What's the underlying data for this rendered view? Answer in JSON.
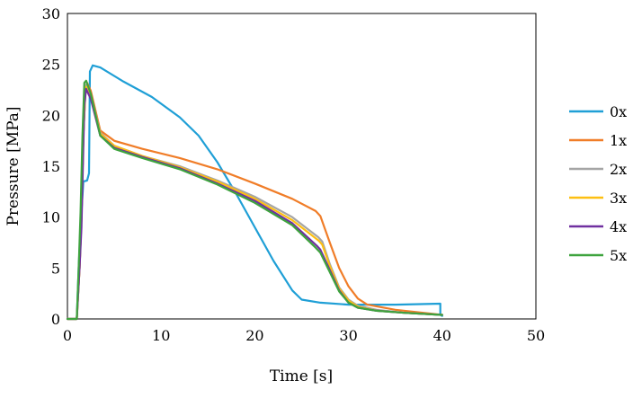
{
  "chart_data": {
    "type": "line",
    "title": "",
    "xlabel": "Time [s]",
    "ylabel": "Pressure [MPa]",
    "xlim": [
      0,
      50
    ],
    "ylim": [
      0,
      30
    ],
    "xticks": [
      0,
      10,
      20,
      30,
      40,
      50
    ],
    "yticks": [
      0,
      5,
      10,
      15,
      20,
      25,
      30
    ],
    "x_tick_labels": [
      "0",
      "10",
      "20",
      "30",
      "40",
      "50"
    ],
    "y_tick_labels": [
      "0",
      "5",
      "10",
      "15",
      "20",
      "25",
      "30"
    ],
    "grid": false,
    "legend_position": "right",
    "series": [
      {
        "name": "0x",
        "color": "#1f9fd6",
        "points": [
          [
            0,
            0
          ],
          [
            1.0,
            0
          ],
          [
            1.2,
            5
          ],
          [
            1.4,
            9
          ],
          [
            1.7,
            13.5
          ],
          [
            2.1,
            13.6
          ],
          [
            2.3,
            14.3
          ],
          [
            2.4,
            24.3
          ],
          [
            2.7,
            24.9
          ],
          [
            3.5,
            24.7
          ],
          [
            6,
            23.3
          ],
          [
            9,
            21.8
          ],
          [
            12,
            19.8
          ],
          [
            14,
            18.0
          ],
          [
            16,
            15.4
          ],
          [
            18,
            12.3
          ],
          [
            20,
            9.0
          ],
          [
            22,
            5.7
          ],
          [
            24,
            2.8
          ],
          [
            25,
            1.9
          ],
          [
            27,
            1.6
          ],
          [
            30,
            1.4
          ],
          [
            35,
            1.4
          ],
          [
            39.8,
            1.5
          ],
          [
            39.8,
            0.4
          ],
          [
            40,
            0.3
          ]
        ]
      },
      {
        "name": "1x",
        "color": "#f07d28",
        "points": [
          [
            0,
            0
          ],
          [
            1.0,
            0
          ],
          [
            1.3,
            5
          ],
          [
            1.5,
            10
          ],
          [
            1.7,
            18
          ],
          [
            1.9,
            22
          ],
          [
            2.1,
            23.2
          ],
          [
            2.5,
            22.4
          ],
          [
            3.5,
            18.5
          ],
          [
            5,
            17.5
          ],
          [
            8,
            16.7
          ],
          [
            12,
            15.8
          ],
          [
            16,
            14.7
          ],
          [
            20,
            13.3
          ],
          [
            24,
            11.8
          ],
          [
            26.5,
            10.6
          ],
          [
            27,
            10.1
          ],
          [
            28,
            7.5
          ],
          [
            29,
            5.0
          ],
          [
            30,
            3.2
          ],
          [
            31,
            2.0
          ],
          [
            32,
            1.4
          ],
          [
            35,
            0.9
          ],
          [
            38,
            0.6
          ],
          [
            40,
            0.4
          ]
        ]
      },
      {
        "name": "2x",
        "color": "#a5a5a5",
        "points": [
          [
            0,
            0
          ],
          [
            1.0,
            0
          ],
          [
            1.3,
            5
          ],
          [
            1.5,
            10
          ],
          [
            1.7,
            18
          ],
          [
            1.9,
            22
          ],
          [
            2.0,
            23.0
          ],
          [
            2.5,
            22.0
          ],
          [
            3.5,
            18.3
          ],
          [
            5,
            17.0
          ],
          [
            8,
            16.0
          ],
          [
            12,
            15.0
          ],
          [
            16,
            13.6
          ],
          [
            20,
            12.0
          ],
          [
            24,
            10.0
          ],
          [
            26.8,
            8.0
          ],
          [
            27.2,
            7.6
          ],
          [
            28,
            5.4
          ],
          [
            29,
            3.1
          ],
          [
            30,
            1.9
          ],
          [
            31,
            1.3
          ],
          [
            33,
            0.9
          ],
          [
            36,
            0.6
          ],
          [
            40,
            0.4
          ]
        ]
      },
      {
        "name": "3x",
        "color": "#fdbf12",
        "points": [
          [
            0,
            0
          ],
          [
            1.0,
            0
          ],
          [
            1.3,
            5
          ],
          [
            1.5,
            9.8
          ],
          [
            1.7,
            18
          ],
          [
            1.9,
            22.2
          ],
          [
            2.0,
            22.8
          ],
          [
            2.5,
            21.8
          ],
          [
            3.5,
            18.2
          ],
          [
            5,
            17.0
          ],
          [
            8,
            16.0
          ],
          [
            12,
            14.9
          ],
          [
            16,
            13.5
          ],
          [
            20,
            11.8
          ],
          [
            24,
            9.7
          ],
          [
            26.8,
            7.7
          ],
          [
            27.2,
            7.3
          ],
          [
            28,
            5.2
          ],
          [
            29,
            3.0
          ],
          [
            30,
            1.8
          ],
          [
            31,
            1.2
          ],
          [
            33,
            0.8
          ],
          [
            36,
            0.6
          ],
          [
            40,
            0.4
          ]
        ]
      },
      {
        "name": "4x",
        "color": "#7030a0",
        "points": [
          [
            0,
            0
          ],
          [
            1.0,
            0
          ],
          [
            1.3,
            5
          ],
          [
            1.5,
            9
          ],
          [
            1.7,
            17
          ],
          [
            1.8,
            21
          ],
          [
            2.0,
            22.6
          ],
          [
            2.5,
            21.6
          ],
          [
            3.5,
            18.0
          ],
          [
            5,
            16.8
          ],
          [
            8,
            15.9
          ],
          [
            12,
            14.8
          ],
          [
            16,
            13.3
          ],
          [
            20,
            11.6
          ],
          [
            24,
            9.4
          ],
          [
            26.6,
            7.2
          ],
          [
            27.0,
            6.8
          ],
          [
            28,
            4.8
          ],
          [
            29,
            2.8
          ],
          [
            30,
            1.6
          ],
          [
            31,
            1.1
          ],
          [
            33,
            0.8
          ],
          [
            36,
            0.6
          ],
          [
            40,
            0.4
          ]
        ]
      },
      {
        "name": "5x",
        "color": "#3ea33e",
        "points": [
          [
            0,
            0
          ],
          [
            1.0,
            0
          ],
          [
            1.2,
            5
          ],
          [
            1.4,
            10.5
          ],
          [
            1.6,
            18
          ],
          [
            1.8,
            23.2
          ],
          [
            2.0,
            23.4
          ],
          [
            2.5,
            22.1
          ],
          [
            3.5,
            18.0
          ],
          [
            5,
            16.7
          ],
          [
            8,
            15.8
          ],
          [
            12,
            14.7
          ],
          [
            16,
            13.2
          ],
          [
            20,
            11.4
          ],
          [
            24,
            9.2
          ],
          [
            26.5,
            7.0
          ],
          [
            27.0,
            6.5
          ],
          [
            28,
            4.6
          ],
          [
            29,
            2.7
          ],
          [
            30,
            1.6
          ],
          [
            31,
            1.1
          ],
          [
            33,
            0.8
          ],
          [
            36,
            0.6
          ],
          [
            40,
            0.4
          ]
        ]
      }
    ]
  }
}
